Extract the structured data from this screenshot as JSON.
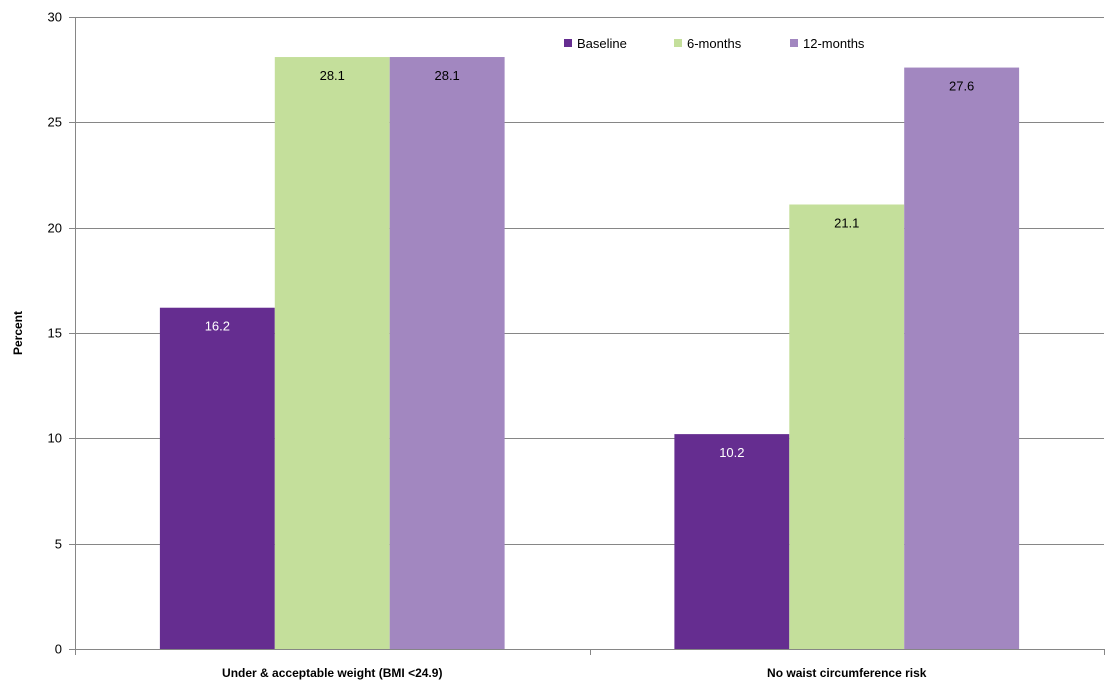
{
  "chart_data": {
    "type": "bar",
    "title": "",
    "xlabel": "",
    "ylabel": "Percent",
    "ylim": [
      0,
      30
    ],
    "yticks": [
      0,
      5,
      10,
      15,
      20,
      25,
      30
    ],
    "grid": true,
    "legend_position": "top-right",
    "categories": [
      "Under & acceptable weight (BMI <24.9)",
      "No waist circumference risk"
    ],
    "series": [
      {
        "name": "Baseline",
        "values": [
          16.2,
          10.2
        ],
        "color": "#652d90",
        "label_color": "#ffffff"
      },
      {
        "name": "6-months",
        "values": [
          28.1,
          21.1
        ],
        "color": "#c4df9b",
        "label_color": "#000000"
      },
      {
        "name": "12-months",
        "values": [
          28.1,
          27.6
        ],
        "color": "#a287c0",
        "label_color": "#000000"
      }
    ]
  }
}
